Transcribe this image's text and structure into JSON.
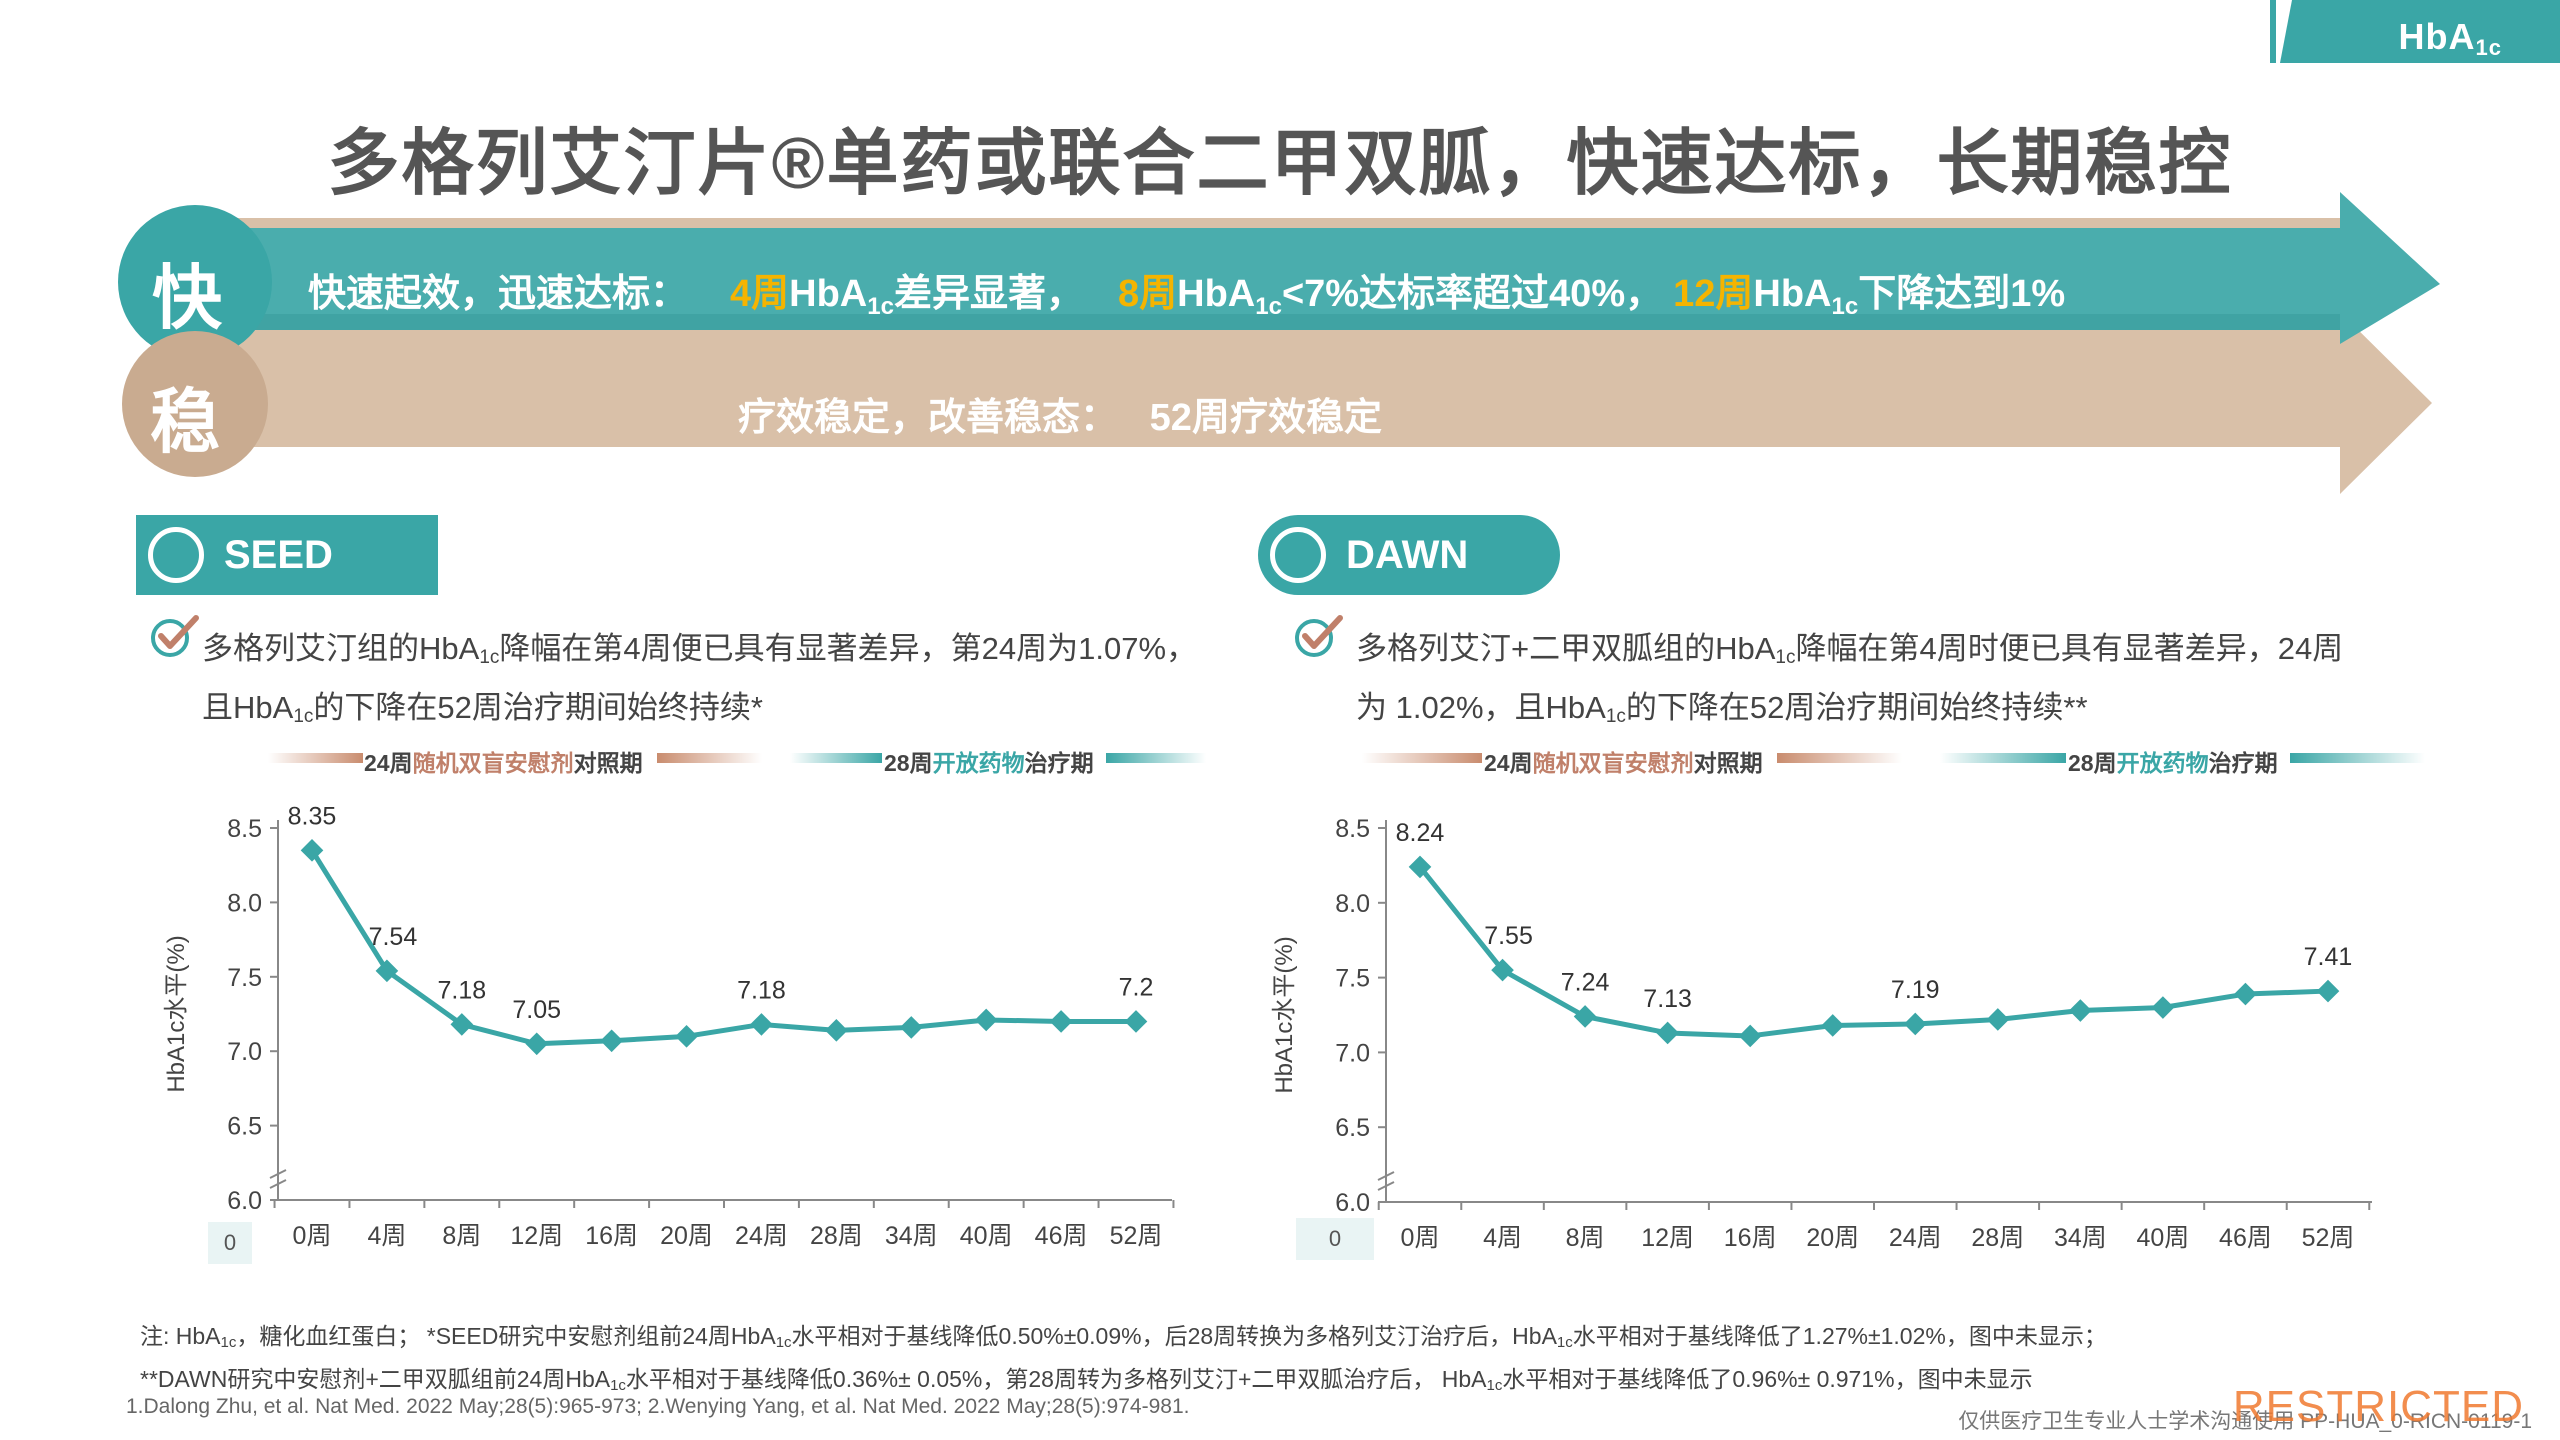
{
  "tag": {
    "main": "HbA",
    "sub": "1c"
  },
  "title": "多格列艾汀片®单药或联合二甲双胍，快速达标，长期稳控",
  "banner": {
    "fast_char": "快",
    "stable_char": "稳",
    "fast": {
      "lead": "快速起效，迅速达标：",
      "w4": "4周",
      "hb1": "HbA",
      "sub": "1c",
      "t1": "差异显著，",
      "w8": "8周",
      "t2": "<7%达标率超过40%，",
      "w12": "12周",
      "t3": "下降达到1%"
    },
    "stable": "疗效稳定，改善稳态：   52周疗效稳定"
  },
  "seed": {
    "label": "SEED",
    "desc_l1_a": "多格列艾汀组的HbA",
    "desc_sub": "1c",
    "desc_l1_b": "降幅在第4周便已具有显著差异，第24周为1.07%，",
    "desc_l2_a": "且HbA",
    "desc_l2_b": "的下降在52周治疗期间始终持续*"
  },
  "dawn": {
    "label": "DAWN",
    "desc_l1_a": "多格列艾汀+二甲双胍组的HbA",
    "desc_sub": "1c",
    "desc_l1_b": "降幅在第4周时便已具有显著差异，24周",
    "desc_l2_a": "为 1.02%，且HbA",
    "desc_l2_b": "的下降在52周治疗期间始终持续**"
  },
  "phases": {
    "p1_a": "24周",
    "p1_b": "随机双盲安慰剂",
    "p1_c": "对照期",
    "p2_a": "28周",
    "p2_b": "开放药物",
    "p2_c": "治疗期"
  },
  "colors": {
    "teal": "#3aa6a6",
    "tan": "#d9c0a8",
    "tan_dark": "#c9ab90",
    "highlight": "#f5b400"
  },
  "chart_data": [
    {
      "type": "line",
      "ylabel": "HbA1c水平(%)",
      "ylim": [
        6.0,
        8.5
      ],
      "yticks": [
        "8.5",
        "8.0",
        "7.5",
        "7.0",
        "6.5",
        "6.0"
      ],
      "yticks_values": [
        8.5,
        8.0,
        7.5,
        7.0,
        6.5,
        6.0
      ],
      "origin_label": "0",
      "categories": [
        "0周",
        "4周",
        "8周",
        "12周",
        "16周",
        "20周",
        "24周",
        "28周",
        "34周",
        "40周",
        "46周",
        "52周"
      ],
      "values": [
        8.35,
        7.54,
        7.18,
        7.05,
        7.07,
        7.1,
        7.18,
        7.14,
        7.16,
        7.21,
        7.2,
        7.2
      ],
      "data_labels": [
        "8.35",
        "7.54",
        "7.18",
        "7.05",
        null,
        null,
        "7.18",
        null,
        null,
        null,
        null,
        "7.2"
      ]
    },
    {
      "type": "line",
      "ylabel": "HbA1c水平(%)",
      "ylim": [
        6.0,
        8.5
      ],
      "yticks": [
        "8.5",
        "8.0",
        "7.5",
        "7.0",
        "6.5",
        "6.0"
      ],
      "yticks_values": [
        8.5,
        8.0,
        7.5,
        7.0,
        6.5,
        6.0
      ],
      "origin_label": "0",
      "categories": [
        "0周",
        "4周",
        "8周",
        "12周",
        "16周",
        "20周",
        "24周",
        "28周",
        "34周",
        "40周",
        "46周",
        "52周"
      ],
      "values": [
        8.24,
        7.55,
        7.24,
        7.13,
        7.11,
        7.18,
        7.19,
        7.22,
        7.28,
        7.3,
        7.39,
        7.41
      ],
      "data_labels": [
        "8.24",
        "7.55",
        "7.24",
        "7.13",
        null,
        null,
        "7.19",
        null,
        null,
        null,
        null,
        "7.41"
      ]
    }
  ],
  "notes": {
    "n1_a": "注:   HbA",
    "n1_sub": "1c",
    "n1_b": "，糖化血红蛋白；   *SEED研究中安慰剂组前24周HbA",
    "n1_c": "水平相对于基线降低0.50%±0.09%，后28周转换为多格列艾汀治疗后，HbA",
    "n1_d": "水平相对于基线降低了1.27%±1.02%，图中未显示；",
    "n2_a": "**DAWN研究中安慰剂+二甲双胍组前24周HbA",
    "n2_b": "水平相对于基线降低0.36%± 0.05%，第28周转为多格列艾汀+二甲双胍治疗后，  HbA",
    "n2_c": "水平相对于基线降低了0.96%± 0.971%，图中未显示"
  },
  "refs": "1.Dalong Zhu, et al. Nat Med. 2022 May;28(5):965-973;  2.Wenying Yang, et al. Nat Med. 2022 May;28(5):974-981.",
  "footer": "仅供医疗卫生专业人士学术沟通使用 PP-HUA_0-RICN-0119-1",
  "restricted": "RESTRICTED"
}
